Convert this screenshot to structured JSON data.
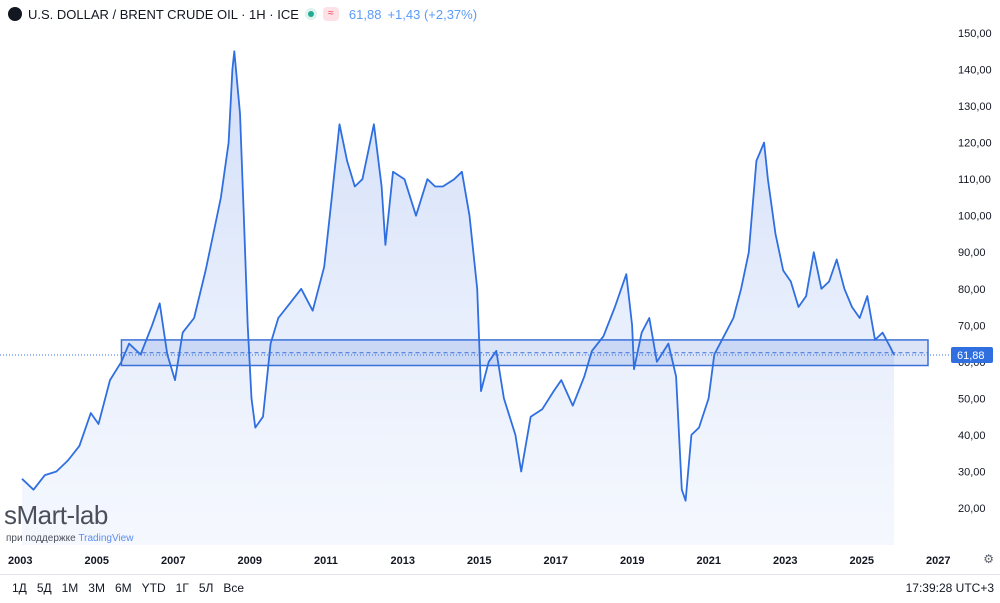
{
  "header": {
    "title": "U.S. DOLLAR / BRENT CRUDE OIL · 1H · ICE",
    "wave_glyph": "≈",
    "price": "61,88",
    "change": "+1,43 (+2,37%)"
  },
  "watermark": "sMart-lab",
  "support_prefix": "при поддержке",
  "support_brand": "TradingView",
  "range_buttons": [
    "1Д",
    "5Д",
    "1М",
    "3М",
    "6М",
    "YTD",
    "1Г",
    "5Л",
    "Все"
  ],
  "clock": "17:39:28 UTC+3",
  "price_label": "61,88",
  "chart_data": {
    "type": "area",
    "ylim": [
      12,
      155
    ],
    "xlim": [
      2003.0,
      2026.8
    ],
    "y_ticks": [
      "20,00",
      "30,00",
      "40,00",
      "50,00",
      "60,00",
      "70,00",
      "80,00",
      "90,00",
      "100,00",
      "110,00",
      "120,00",
      "130,00",
      "140,00",
      "150,00"
    ],
    "y_tick_values": [
      20,
      30,
      40,
      50,
      60,
      70,
      80,
      90,
      100,
      110,
      120,
      130,
      140,
      150
    ],
    "x_ticks": [
      "2003",
      "2005",
      "2007",
      "2009",
      "2011",
      "2013",
      "2015",
      "2017",
      "2019",
      "2021",
      "2023",
      "2025",
      "2027"
    ],
    "x_tick_values": [
      2003,
      2005,
      2007,
      2009,
      2011,
      2013,
      2015,
      2017,
      2019,
      2021,
      2023,
      2025,
      2027
    ],
    "series": [
      {
        "points": [
          [
            2003.0,
            28
          ],
          [
            2003.3,
            25
          ],
          [
            2003.6,
            29
          ],
          [
            2003.9,
            30
          ],
          [
            2004.2,
            33
          ],
          [
            2004.5,
            37
          ],
          [
            2004.8,
            46
          ],
          [
            2005.0,
            43
          ],
          [
            2005.3,
            55
          ],
          [
            2005.6,
            60
          ],
          [
            2005.8,
            65
          ],
          [
            2006.1,
            62
          ],
          [
            2006.4,
            70
          ],
          [
            2006.6,
            76
          ],
          [
            2006.8,
            62
          ],
          [
            2007.0,
            55
          ],
          [
            2007.2,
            68
          ],
          [
            2007.5,
            72
          ],
          [
            2007.8,
            85
          ],
          [
            2008.0,
            95
          ],
          [
            2008.2,
            105
          ],
          [
            2008.4,
            120
          ],
          [
            2008.5,
            140
          ],
          [
            2008.55,
            145
          ],
          [
            2008.7,
            128
          ],
          [
            2008.8,
            100
          ],
          [
            2008.9,
            70
          ],
          [
            2009.0,
            50
          ],
          [
            2009.1,
            42
          ],
          [
            2009.3,
            45
          ],
          [
            2009.5,
            65
          ],
          [
            2009.7,
            72
          ],
          [
            2010.0,
            76
          ],
          [
            2010.3,
            80
          ],
          [
            2010.6,
            74
          ],
          [
            2010.9,
            86
          ],
          [
            2011.1,
            105
          ],
          [
            2011.3,
            125
          ],
          [
            2011.5,
            115
          ],
          [
            2011.7,
            108
          ],
          [
            2011.9,
            110
          ],
          [
            2012.2,
            125
          ],
          [
            2012.4,
            108
          ],
          [
            2012.5,
            92
          ],
          [
            2012.7,
            112
          ],
          [
            2013.0,
            110
          ],
          [
            2013.3,
            100
          ],
          [
            2013.6,
            110
          ],
          [
            2013.8,
            108
          ],
          [
            2014.0,
            108
          ],
          [
            2014.3,
            110
          ],
          [
            2014.5,
            112
          ],
          [
            2014.7,
            100
          ],
          [
            2014.9,
            80
          ],
          [
            2015.0,
            52
          ],
          [
            2015.2,
            60
          ],
          [
            2015.4,
            63
          ],
          [
            2015.6,
            50
          ],
          [
            2015.9,
            40
          ],
          [
            2016.05,
            30
          ],
          [
            2016.3,
            45
          ],
          [
            2016.6,
            47
          ],
          [
            2016.9,
            52
          ],
          [
            2017.1,
            55
          ],
          [
            2017.4,
            48
          ],
          [
            2017.7,
            56
          ],
          [
            2017.9,
            63
          ],
          [
            2018.2,
            67
          ],
          [
            2018.5,
            75
          ],
          [
            2018.8,
            84
          ],
          [
            2018.95,
            70
          ],
          [
            2019.0,
            58
          ],
          [
            2019.2,
            68
          ],
          [
            2019.4,
            72
          ],
          [
            2019.6,
            60
          ],
          [
            2019.9,
            65
          ],
          [
            2020.1,
            56
          ],
          [
            2020.25,
            25
          ],
          [
            2020.35,
            22
          ],
          [
            2020.5,
            40
          ],
          [
            2020.7,
            42
          ],
          [
            2020.95,
            50
          ],
          [
            2021.1,
            62
          ],
          [
            2021.4,
            68
          ],
          [
            2021.6,
            72
          ],
          [
            2021.8,
            80
          ],
          [
            2022.0,
            90
          ],
          [
            2022.2,
            115
          ],
          [
            2022.4,
            120
          ],
          [
            2022.5,
            110
          ],
          [
            2022.7,
            95
          ],
          [
            2022.9,
            85
          ],
          [
            2023.1,
            82
          ],
          [
            2023.3,
            75
          ],
          [
            2023.5,
            78
          ],
          [
            2023.7,
            90
          ],
          [
            2023.9,
            80
          ],
          [
            2024.1,
            82
          ],
          [
            2024.3,
            88
          ],
          [
            2024.5,
            80
          ],
          [
            2024.7,
            75
          ],
          [
            2024.9,
            72
          ],
          [
            2025.1,
            78
          ],
          [
            2025.3,
            66
          ],
          [
            2025.5,
            68
          ],
          [
            2025.7,
            64
          ],
          [
            2025.8,
            61.88
          ]
        ]
      }
    ],
    "zone_high": 66,
    "zone_low": 59,
    "zone_mid": 62.5,
    "last_value": 61.88,
    "line_color": "#2f6fe0",
    "fill_color": "#dbe6fb",
    "zone_color": "#3b6fd8",
    "grid": false
  }
}
